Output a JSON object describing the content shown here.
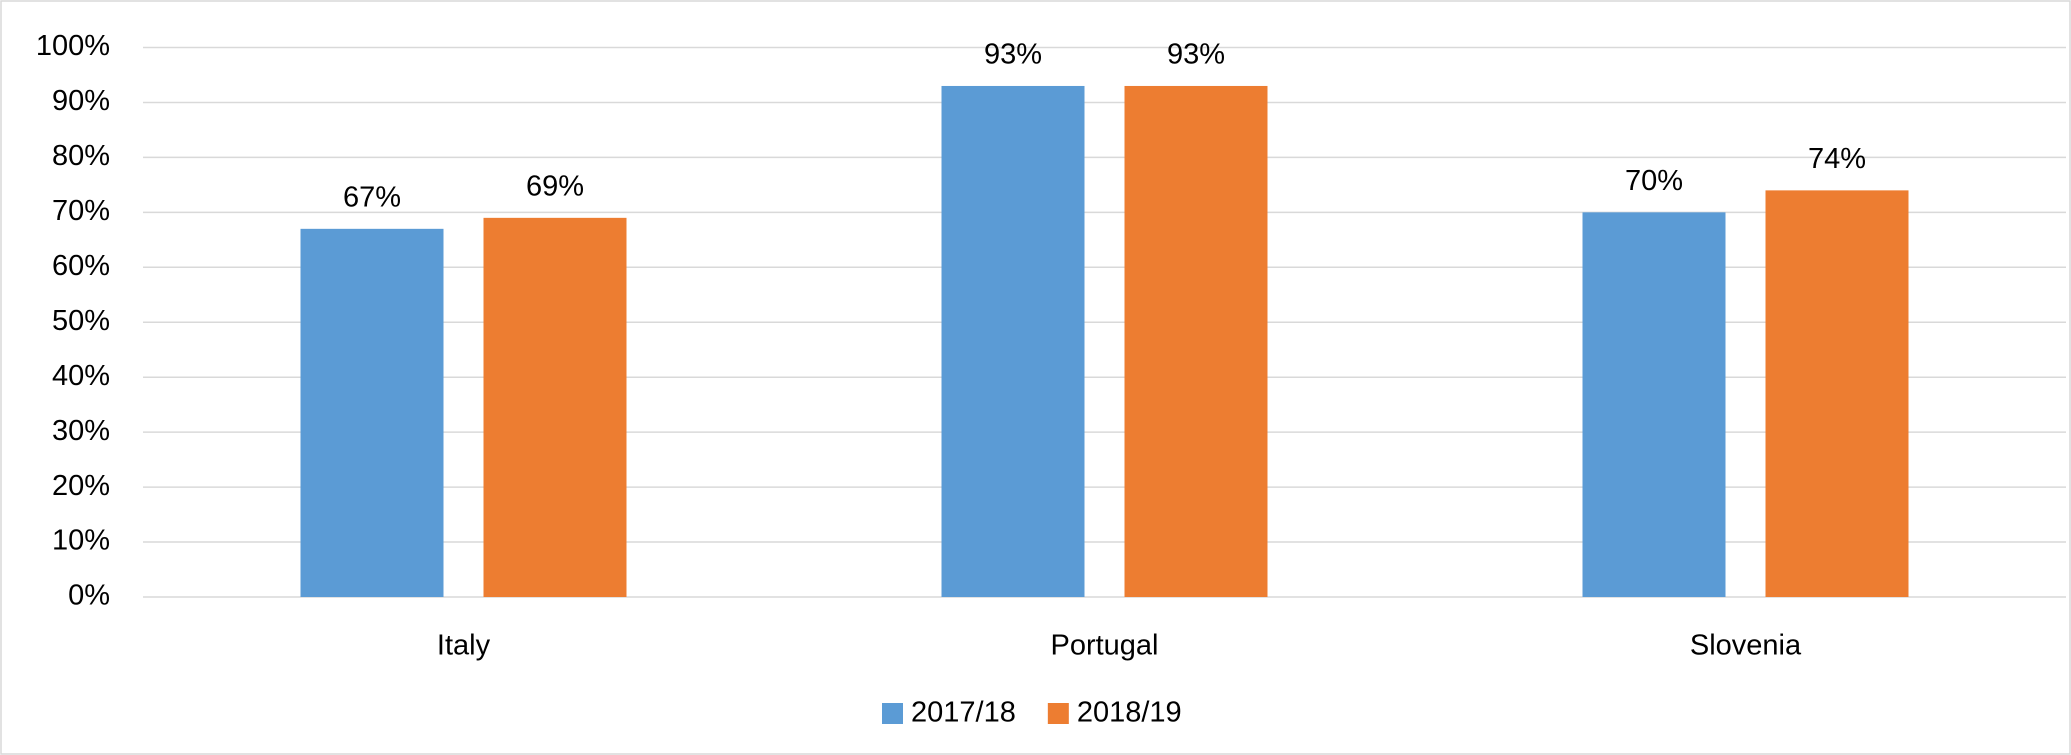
{
  "chart_data": {
    "type": "bar",
    "categories": [
      "Italy",
      "Portugal",
      "Slovenia"
    ],
    "series": [
      {
        "name": "2017/18",
        "color": "#5b9bd5",
        "values": [
          67,
          93,
          70
        ],
        "value_labels": [
          "67%",
          "93%",
          "70%"
        ]
      },
      {
        "name": "2018/19",
        "color": "#ed7d31",
        "values": [
          69,
          93,
          74
        ],
        "value_labels": [
          "69%",
          "93%",
          "74%"
        ]
      }
    ],
    "ylim": [
      0,
      100
    ],
    "yticks": [
      {
        "value": 0,
        "label": "0%"
      },
      {
        "value": 10,
        "label": "10%"
      },
      {
        "value": 20,
        "label": "20%"
      },
      {
        "value": 30,
        "label": "30%"
      },
      {
        "value": 40,
        "label": "40%"
      },
      {
        "value": 50,
        "label": "50%"
      },
      {
        "value": 60,
        "label": "60%"
      },
      {
        "value": 70,
        "label": "70%"
      },
      {
        "value": 80,
        "label": "80%"
      },
      {
        "value": 90,
        "label": "90%"
      },
      {
        "value": 100,
        "label": "100%"
      }
    ],
    "grid": true,
    "legend": "bottom"
  }
}
